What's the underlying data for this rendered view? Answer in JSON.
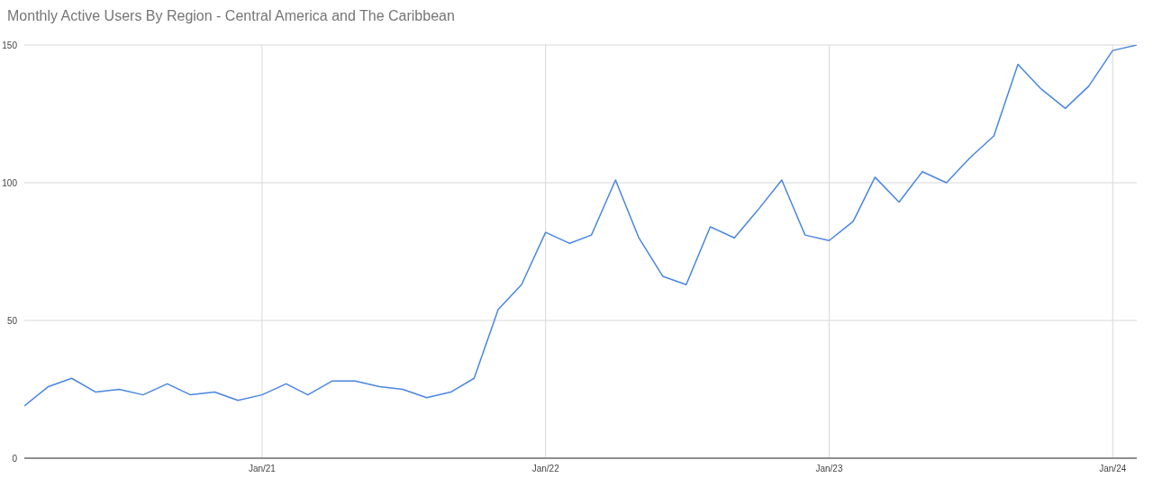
{
  "chart_data": {
    "type": "line",
    "title": "Monthly Active Users By Region - Central America and The Caribbean",
    "x": [
      "2020-03",
      "2020-04",
      "2020-05",
      "2020-06",
      "2020-07",
      "2020-08",
      "2020-09",
      "2020-10",
      "2020-11",
      "2020-12",
      "2021-01",
      "2021-02",
      "2021-03",
      "2021-04",
      "2021-05",
      "2021-06",
      "2021-07",
      "2021-08",
      "2021-09",
      "2021-10",
      "2021-11",
      "2021-12",
      "2022-01",
      "2022-02",
      "2022-03",
      "2022-04",
      "2022-05",
      "2022-06",
      "2022-07",
      "2022-08",
      "2022-09",
      "2022-10",
      "2022-11",
      "2022-12",
      "2023-01",
      "2023-02",
      "2023-03",
      "2023-04",
      "2023-05",
      "2023-06",
      "2023-07",
      "2023-08",
      "2023-09",
      "2023-10",
      "2023-11",
      "2023-12",
      "2024-01",
      "2024-02"
    ],
    "series": [
      {
        "color": "#4a86e0",
        "values": [
          19,
          26,
          29,
          24,
          25,
          23,
          27,
          23,
          24,
          21,
          23,
          27,
          23,
          28,
          28,
          26,
          25,
          22,
          24,
          29,
          54,
          63,
          82,
          78,
          81,
          101,
          80,
          66,
          63,
          84,
          80,
          90,
          101,
          81,
          79,
          86,
          102,
          93,
          104,
          100,
          109,
          117,
          143,
          134,
          127,
          135,
          148,
          150
        ]
      }
    ],
    "xlim": [
      "2020-03",
      "2024-02"
    ],
    "xticks": [
      {
        "value": "2021-01",
        "label": "Jan/21"
      },
      {
        "value": "2022-01",
        "label": "Jan/22"
      },
      {
        "value": "2023-01",
        "label": "Jan/23"
      },
      {
        "value": "2024-01",
        "label": "Jan/24"
      }
    ],
    "ylim": [
      0,
      150
    ],
    "yticks": [
      0,
      50,
      100,
      150
    ],
    "grid": true,
    "legend": false,
    "marker": "none",
    "line_style": "solid"
  }
}
